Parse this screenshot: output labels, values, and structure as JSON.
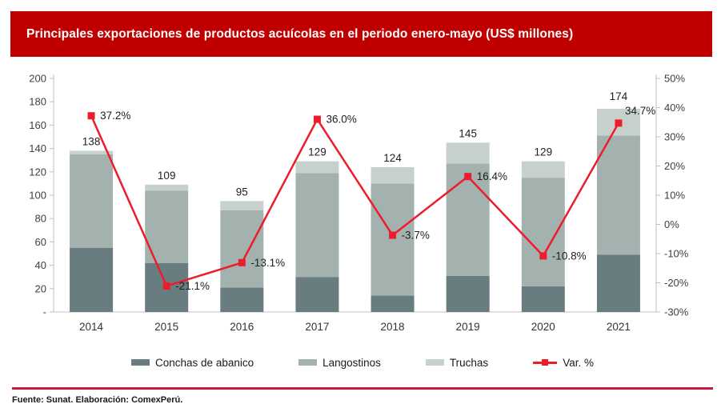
{
  "page": {
    "title": "Principales exportaciones de productos acuícolas en el periodo enero-mayo (US$ millones)",
    "footer": "Fuente: Sunat. Elaboración: ComexPerú.",
    "colors": {
      "banner_background": "#c00000",
      "banner_text": "#ffffff",
      "footer_rule": "#d0153c",
      "axis_line": "#bfbfbf",
      "axis_bottom_line": "#d6d6d6",
      "tick_label": "#404040",
      "data_label": "#1f1f1f"
    }
  },
  "chart_data": {
    "type": "combo-stacked-bar-line",
    "categories": [
      "2014",
      "2015",
      "2016",
      "2017",
      "2018",
      "2019",
      "2020",
      "2021"
    ],
    "bar_series": [
      {
        "name": "Conchas de abanico",
        "color": "#697c7f",
        "values": [
          55,
          42,
          21,
          30,
          14,
          31,
          22,
          49
        ]
      },
      {
        "name": "Langostinos",
        "color": "#a3b2ae",
        "values": [
          80,
          62,
          66,
          89,
          96,
          96,
          93,
          102
        ]
      },
      {
        "name": "Truchas",
        "color": "#c7d1cc",
        "values": [
          3,
          5,
          8,
          10,
          14,
          18,
          14,
          23
        ]
      }
    ],
    "bar_totals": [
      138,
      109,
      95,
      129,
      124,
      145,
      129,
      174
    ],
    "bar_total_labels": [
      "138",
      "109",
      "95",
      "129",
      "124",
      "145",
      "129",
      "174"
    ],
    "line_series": {
      "name": "Var. %",
      "color": "#ee1c2b",
      "values": [
        37.2,
        -21.1,
        -13.1,
        36.0,
        -3.7,
        16.4,
        -10.8,
        34.7
      ],
      "labels": [
        "37.2%",
        "-21.1%",
        "-13.1%",
        "36.0%",
        "-3.7%",
        "16.4%",
        "-10.8%",
        "34.7%"
      ]
    },
    "left_axis": {
      "min": 0,
      "max": 200,
      "step": 20,
      "tick_labels_top_down": [
        "200",
        "180",
        "160",
        "140",
        "120",
        "100",
        "80",
        "60",
        "40",
        "20",
        "-"
      ]
    },
    "right_axis": {
      "min": -30,
      "max": 50,
      "step": 10,
      "tick_labels_top_down": [
        "50%",
        "40%",
        "30%",
        "20%",
        "10%",
        "0%",
        "-10%",
        "-20%",
        "-30%"
      ]
    },
    "grid": "off",
    "legend_position": "bottom"
  }
}
